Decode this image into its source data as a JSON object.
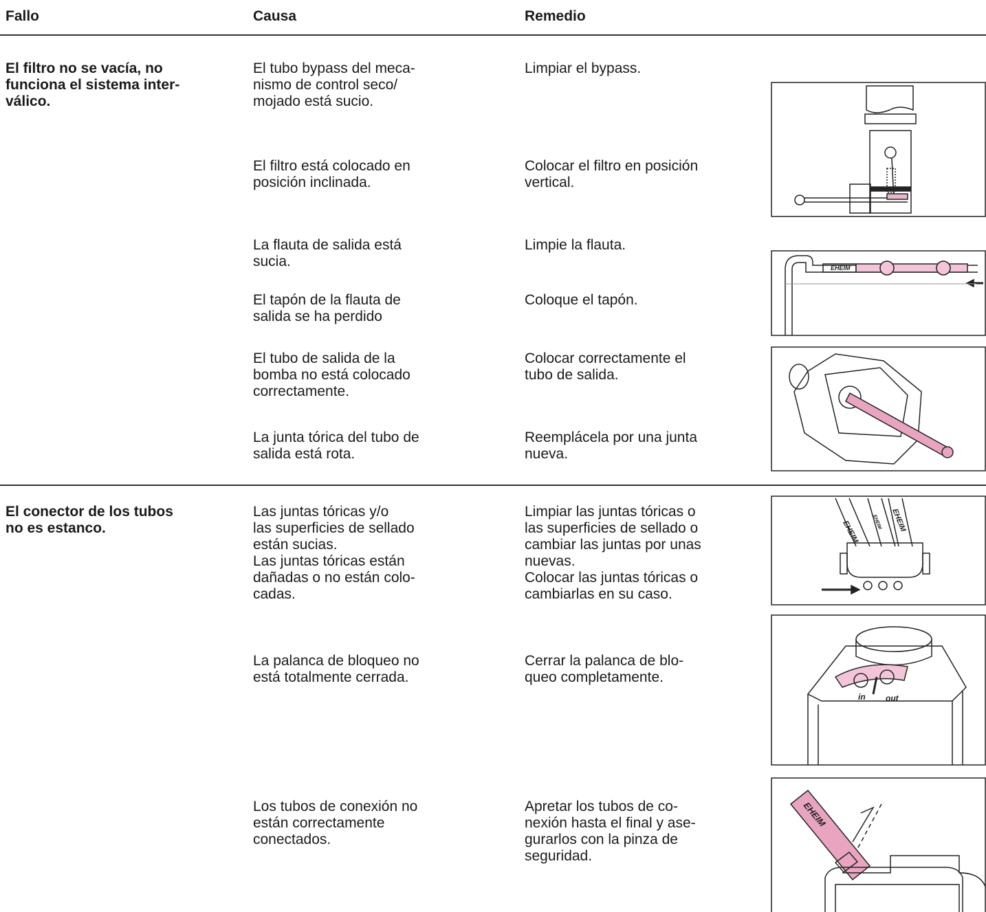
{
  "header": {
    "fault": "Fallo",
    "cause": "Causa",
    "remedy": "Remedio"
  },
  "sections": [
    {
      "fault": [
        "El filtro no se vacía, no",
        "funciona el sistema inter-",
        "válico."
      ],
      "rows": [
        {
          "cause": [
            "El tubo bypass del meca-",
            "nismo de control seco/",
            "mojado está sucio."
          ],
          "remedy": [
            "Limpiar el bypass."
          ]
        },
        {
          "cause": [
            "El filtro está colocado en",
            "posición inclinada."
          ],
          "remedy": [
            "Colocar el filtro en posición",
            "vertical."
          ]
        },
        {
          "cause": [
            "La flauta de salida está",
            "sucia."
          ],
          "remedy": [
            "Limpie la flauta."
          ]
        },
        {
          "cause": [
            "El tapón de la flauta de",
            "salida se ha perdido"
          ],
          "remedy": [
            "Coloque el tapón."
          ]
        },
        {
          "cause": [
            "El tubo de salida de la",
            "bomba no está colocado",
            "correctamente."
          ],
          "remedy": [
            "Colocar correctamente el",
            "tubo de salida."
          ]
        },
        {
          "cause": [
            "La junta tórica del tubo de",
            "salida está rota."
          ],
          "remedy": [
            "Reemplácela por una junta",
            "nueva."
          ]
        }
      ]
    },
    {
      "fault": [
        "El conector de los tubos",
        "no es estanco."
      ],
      "rows": [
        {
          "cause": [
            "Las juntas tóricas y/o",
            "las superficies de sellado",
            "están sucias.",
            "Las juntas tóricas están",
            "dañadas o no están colo-",
            "cadas."
          ],
          "remedy": [
            "Limpiar las juntas tóricas o",
            "las superficies de sellado o",
            "cambiar las juntas por unas",
            "nuevas.",
            "Colocar las juntas tóricas o",
            "cambiarlas en su caso."
          ]
        },
        {
          "cause": [
            "La palanca de bloqueo no",
            "está totalmente cerrada."
          ],
          "remedy": [
            "Cerrar la palanca de blo-",
            "queo completamente."
          ]
        },
        {
          "cause": [
            "Los tubos de conexión no",
            "están correctamente",
            "conectados."
          ],
          "remedy": [
            "Apretar los tubos de co-",
            "nexión hasta el final y ase-",
            "gurarlos con la pinza de",
            "seguridad."
          ]
        }
      ]
    }
  ],
  "figure_labels": {
    "flute": [
      "EHEIM"
    ],
    "connector": [
      "EHEIM",
      "EHEIM",
      "EHEIM"
    ],
    "lever": [
      "in",
      "out"
    ],
    "hoses": [
      "EHEIM"
    ]
  }
}
